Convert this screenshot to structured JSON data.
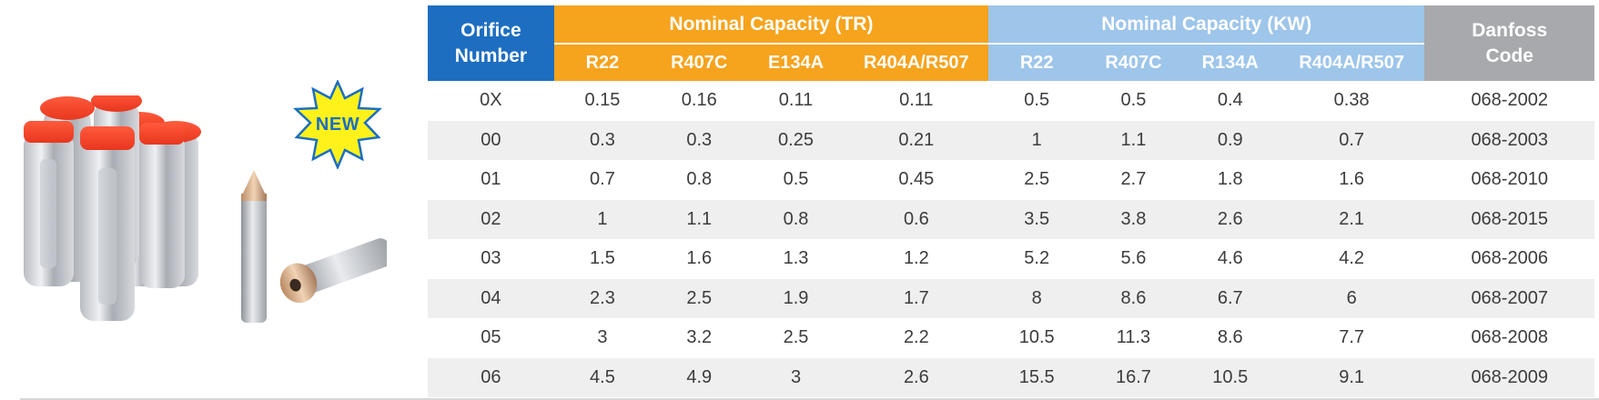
{
  "badge": {
    "text": "NEW",
    "color": "#1a6ec2",
    "fill": "#fff21a"
  },
  "colors": {
    "orifice_header": "#1d6ec0",
    "tr_header": "#f6a31d",
    "kw_header": "#9ec5ea",
    "code_header": "#a7a9ac",
    "stripe": "#efefef"
  },
  "table": {
    "orifice_header": [
      "Orifice",
      "Number"
    ],
    "tr_group": "Nominal Capacity (TR)",
    "kw_group": "Nominal Capacity (KW)",
    "code_header": [
      "Danfoss",
      "Code"
    ],
    "tr_columns": [
      "R22",
      "R407C",
      "E134A",
      "R404A/R507"
    ],
    "kw_columns": [
      "R22",
      "R407C",
      "R134A",
      "R404A/R507"
    ],
    "rows": [
      {
        "orifice": "0X",
        "tr": [
          "0.15",
          "0.16",
          "0.11",
          "0.11"
        ],
        "kw": [
          "0.5",
          "0.5",
          "0.4",
          "0.38"
        ],
        "code": "068-2002"
      },
      {
        "orifice": "00",
        "tr": [
          "0.3",
          "0.3",
          "0.25",
          "0.21"
        ],
        "kw": [
          "1",
          "1.1",
          "0.9",
          "0.7"
        ],
        "code": "068-2003"
      },
      {
        "orifice": "01",
        "tr": [
          "0.7",
          "0.8",
          "0.5",
          "0.45"
        ],
        "kw": [
          "2.5",
          "2.7",
          "1.8",
          "1.6"
        ],
        "code": "068-2010"
      },
      {
        "orifice": "02",
        "tr": [
          "1",
          "1.1",
          "0.8",
          "0.6"
        ],
        "kw": [
          "3.5",
          "3.8",
          "2.6",
          "2.1"
        ],
        "code": "068-2015"
      },
      {
        "orifice": "03",
        "tr": [
          "1.5",
          "1.6",
          "1.3",
          "1.2"
        ],
        "kw": [
          "5.2",
          "5.6",
          "4.6",
          "4.2"
        ],
        "code": "068-2006"
      },
      {
        "orifice": "04",
        "tr": [
          "2.3",
          "2.5",
          "1.9",
          "1.7"
        ],
        "kw": [
          "8",
          "8.6",
          "6.7",
          "6"
        ],
        "code": "068-2007"
      },
      {
        "orifice": "05",
        "tr": [
          "3",
          "3.2",
          "2.5",
          "2.2"
        ],
        "kw": [
          "10.5",
          "11.3",
          "8.6",
          "7.7"
        ],
        "code": "068-2008"
      },
      {
        "orifice": "06",
        "tr": [
          "4.5",
          "4.9",
          "3",
          "2.6"
        ],
        "kw": [
          "15.5",
          "16.7",
          "10.5",
          "9.1"
        ],
        "code": "068-2009"
      }
    ]
  }
}
